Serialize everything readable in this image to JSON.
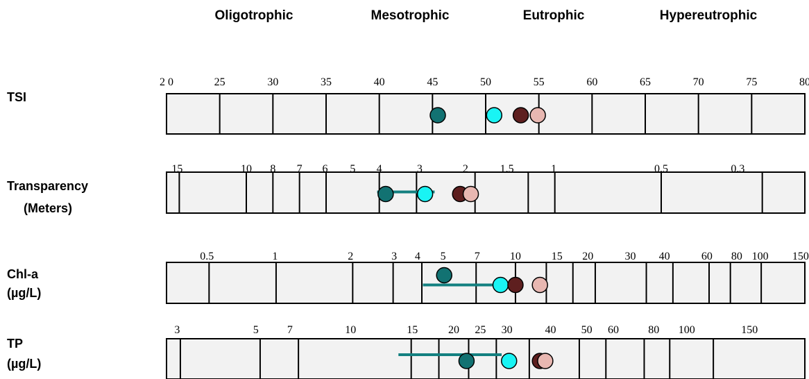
{
  "chart_data": {
    "type": "scatter",
    "trophic_states": [
      "Oligotrophic",
      "Mesotrophic",
      "Eutrophic",
      "Hypereutrophic"
    ],
    "colors": {
      "bar_fill": "#f2f2f2",
      "outline": "#000000",
      "range_line": "#138080",
      "series": [
        "#127272",
        "#19f4f4",
        "#5e1f1f",
        "#e8b7b1"
      ]
    },
    "rows": [
      {
        "label_lines": [
          "TSI"
        ],
        "ticks": [
          "2 0",
          "25",
          "30",
          "35",
          "40",
          "45",
          "50",
          "55",
          "60",
          "65",
          "70",
          "75",
          "80"
        ],
        "tick_tsi": [
          20,
          25,
          30,
          35,
          40,
          45,
          50,
          55,
          60,
          65,
          70,
          75,
          80
        ],
        "divider_tsi": [
          25,
          30,
          35,
          40,
          45,
          50,
          55,
          60,
          65,
          70,
          75
        ],
        "points_tsi": [
          45.5,
          50.8,
          53.3,
          54.9
        ],
        "range_tsi": null
      },
      {
        "label_lines": [
          "Transparency",
          "(Meters)"
        ],
        "ticks": [
          "15",
          "10",
          "8",
          "7",
          "6",
          "5",
          "4",
          "3",
          "2",
          "1.5",
          "1",
          "0.5",
          "0.3"
        ],
        "tick_tsi": [
          21,
          27.5,
          30,
          32.5,
          34.9,
          37.5,
          40,
          43.8,
          48.1,
          52,
          56.4,
          66.5,
          73.7
        ],
        "divider_tsi": [
          21.2,
          27.5,
          30,
          32.5,
          35,
          40,
          43.5,
          49,
          54,
          56.5,
          66.5,
          76
        ],
        "points_tsi": [
          40.6,
          44.3,
          47.6,
          48.6
        ],
        "range_tsi": [
          39.8,
          45.2
        ]
      },
      {
        "label_lines": [
          "Chl-a",
          "(µg/L)"
        ],
        "ticks": [
          "0.5",
          "1",
          "2",
          "3",
          "4",
          "5",
          "7",
          "10",
          "15",
          "20",
          "30",
          "40",
          "60",
          "80",
          "100",
          "150"
        ],
        "tick_tsi": [
          23.8,
          30.2,
          37.3,
          41.4,
          43.6,
          46,
          49.2,
          52.8,
          56.7,
          59.6,
          63.6,
          66.8,
          70.8,
          73.6,
          75.8,
          79.6
        ],
        "divider_tsi": [
          24,
          30.3,
          37.5,
          41.3,
          44,
          49.1,
          52.8,
          55.7,
          58.2,
          60.3,
          65.1,
          67.6,
          71,
          73,
          75.9
        ],
        "points_tsi": [
          46.1,
          51.4,
          52.8,
          55.1
        ],
        "range_tsi": [
          44.1,
          52.6
        ]
      },
      {
        "label_lines": [
          "TP",
          "(µg/L)"
        ],
        "ticks": [
          "3",
          "5",
          "7",
          "10",
          "15",
          "20",
          "25",
          "30",
          "40",
          "50",
          "60",
          "80",
          "100",
          "150"
        ],
        "tick_tsi": [
          21,
          28.4,
          31.6,
          37.3,
          43.1,
          47,
          49.5,
          52,
          56.1,
          59.5,
          62,
          65.8,
          68.9,
          74.8
        ],
        "divider_tsi": [
          21.3,
          28.8,
          32.4,
          43,
          45.6,
          48.4,
          51,
          54.1,
          58.8,
          61.3,
          64.9,
          67.3,
          71.4
        ],
        "points_tsi": [
          48.2,
          52.2,
          55.1,
          55.6
        ],
        "range_tsi": [
          41.8,
          51.5
        ]
      }
    ]
  }
}
